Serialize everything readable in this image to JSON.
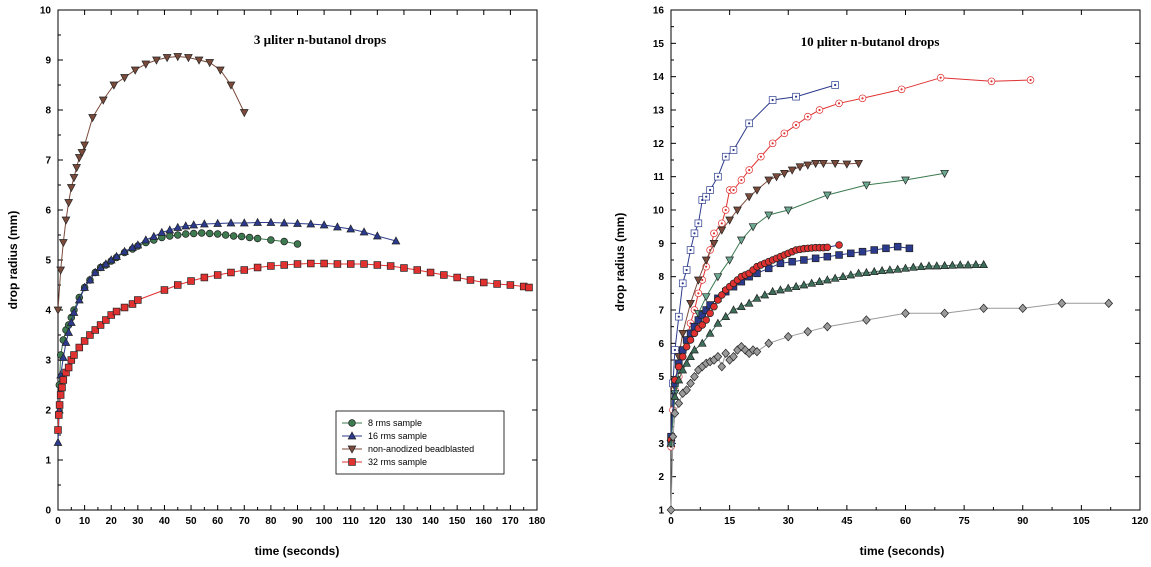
{
  "chart_data": [
    {
      "type": "line",
      "title": "3 µliter n-butanol drops",
      "xlabel": "time (seconds)",
      "ylabel": "drop radius (mm)",
      "xlim": [
        0,
        180
      ],
      "ylim": [
        0,
        10
      ],
      "x_ticks": [
        0,
        10,
        20,
        30,
        40,
        50,
        60,
        70,
        80,
        90,
        100,
        110,
        120,
        130,
        140,
        150,
        160,
        170,
        180
      ],
      "y_ticks": [
        0,
        1,
        2,
        3,
        4,
        5,
        6,
        7,
        8,
        9,
        10
      ],
      "legend_position": "lower-right",
      "series": [
        {
          "name": "8 rms sample",
          "marker": "circle",
          "fill": "#3d7a50",
          "line": "#3d7a50",
          "x": [
            0.5,
            1,
            2,
            3,
            4,
            5,
            6,
            8,
            10,
            12,
            14,
            16,
            18,
            20,
            22,
            25,
            28,
            30,
            33,
            36,
            39,
            42,
            45,
            48,
            51,
            54,
            57,
            60,
            63,
            66,
            69,
            72,
            75,
            80,
            85,
            90
          ],
          "y": [
            2.5,
            3.1,
            3.4,
            3.6,
            3.7,
            3.85,
            4.0,
            4.25,
            4.45,
            4.6,
            4.75,
            4.85,
            4.9,
            4.98,
            5.05,
            5.15,
            5.22,
            5.28,
            5.35,
            5.4,
            5.45,
            5.48,
            5.5,
            5.52,
            5.53,
            5.54,
            5.53,
            5.52,
            5.5,
            5.48,
            5.47,
            5.45,
            5.43,
            5.4,
            5.37,
            5.32
          ]
        },
        {
          "name": "16 rms sample",
          "marker": "triangle-up",
          "fill": "#2b3a8c",
          "line": "#2b3a8c",
          "x": [
            0,
            0.5,
            1,
            2,
            3,
            4,
            5,
            6,
            8,
            10,
            12,
            14,
            16,
            18,
            20,
            22,
            25,
            28,
            30,
            33,
            36,
            39,
            42,
            45,
            48,
            51,
            55,
            60,
            65,
            70,
            75,
            80,
            85,
            90,
            95,
            100,
            105,
            110,
            115,
            120,
            127
          ],
          "y": [
            1.35,
            2.0,
            2.7,
            3.05,
            3.35,
            3.55,
            3.75,
            3.95,
            4.2,
            4.45,
            4.6,
            4.75,
            4.85,
            4.92,
            5.0,
            5.07,
            5.17,
            5.25,
            5.3,
            5.4,
            5.47,
            5.55,
            5.6,
            5.65,
            5.68,
            5.7,
            5.72,
            5.73,
            5.74,
            5.74,
            5.75,
            5.75,
            5.74,
            5.73,
            5.72,
            5.7,
            5.66,
            5.62,
            5.56,
            5.48,
            5.38
          ]
        },
        {
          "name": "non-anodized beadblasted",
          "marker": "triangle-down",
          "fill": "#7a4a3a",
          "line": "#7a4a3a",
          "x": [
            0,
            1,
            2,
            3,
            4,
            5,
            6,
            7,
            8,
            9,
            10,
            13,
            17,
            21,
            25,
            29,
            33,
            37,
            41,
            45,
            49,
            53,
            57,
            61,
            65,
            70
          ],
          "y": [
            4.0,
            4.8,
            5.35,
            5.8,
            6.15,
            6.45,
            6.65,
            6.85,
            7.05,
            7.15,
            7.3,
            7.85,
            8.2,
            8.5,
            8.65,
            8.8,
            8.92,
            9.0,
            9.05,
            9.07,
            9.05,
            9.0,
            8.95,
            8.8,
            8.5,
            7.95
          ]
        },
        {
          "name": "32 rms sample",
          "marker": "square",
          "fill": "#e03030",
          "line": "#e03030",
          "x": [
            0,
            0.3,
            0.6,
            1,
            1.5,
            2,
            3,
            4,
            5,
            6,
            8,
            10,
            12,
            14,
            16,
            18,
            20,
            22,
            25,
            28,
            30,
            40,
            45,
            50,
            55,
            60,
            65,
            70,
            75,
            80,
            85,
            90,
            95,
            100,
            105,
            110,
            115,
            120,
            125,
            130,
            135,
            140,
            145,
            150,
            155,
            160,
            165,
            170,
            175,
            177
          ],
          "y": [
            1.6,
            1.9,
            2.1,
            2.3,
            2.45,
            2.6,
            2.75,
            2.85,
            3.0,
            3.1,
            3.25,
            3.38,
            3.5,
            3.6,
            3.7,
            3.8,
            3.9,
            3.97,
            4.05,
            4.12,
            4.2,
            4.4,
            4.5,
            4.58,
            4.65,
            4.7,
            4.75,
            4.8,
            4.85,
            4.88,
            4.9,
            4.92,
            4.93,
            4.93,
            4.92,
            4.92,
            4.92,
            4.9,
            4.88,
            4.84,
            4.8,
            4.75,
            4.7,
            4.65,
            4.6,
            4.55,
            4.52,
            4.5,
            4.47,
            4.45
          ]
        }
      ]
    },
    {
      "type": "line",
      "title": "10 µliter n-butanol drops",
      "xlabel": "time (seconds)",
      "ylabel": "drop radius (mm)",
      "xlim": [
        0,
        120
      ],
      "ylim": [
        1,
        16
      ],
      "x_ticks": [
        0,
        15,
        30,
        45,
        60,
        75,
        90,
        105,
        120
      ],
      "y_ticks": [
        1,
        2,
        3,
        4,
        5,
        6,
        7,
        8,
        9,
        10,
        11,
        12,
        13,
        14,
        15,
        16
      ],
      "series": [
        {
          "marker": "square-open",
          "fill": "#ffffff",
          "line": "#2b3a8c",
          "x": [
            0,
            0.5,
            1,
            2,
            3,
            4,
            5,
            6,
            7,
            8,
            9,
            10,
            12,
            14,
            16,
            20,
            26,
            32,
            42
          ],
          "y": [
            3.0,
            4.8,
            5.8,
            6.8,
            7.8,
            8.2,
            8.8,
            9.3,
            9.6,
            10.3,
            10.4,
            10.6,
            11.0,
            11.6,
            11.8,
            12.6,
            13.3,
            13.4,
            13.75
          ]
        },
        {
          "marker": "circle-open",
          "fill": "#ffffff",
          "line": "#e03030",
          "x": [
            0,
            0.5,
            1,
            2,
            3,
            4,
            5,
            6,
            7,
            8,
            9,
            10,
            11,
            13,
            14,
            15,
            16,
            18,
            20,
            23,
            26,
            29,
            32,
            35,
            38,
            43,
            49,
            59,
            69,
            82,
            92
          ],
          "y": [
            2.9,
            4.0,
            4.6,
            5.0,
            5.6,
            6.1,
            6.6,
            7.0,
            7.5,
            7.9,
            8.3,
            8.8,
            9.3,
            9.6,
            10.0,
            10.6,
            10.6,
            10.9,
            11.2,
            11.6,
            12.0,
            12.3,
            12.55,
            12.8,
            13.0,
            13.2,
            13.35,
            13.62,
            13.97,
            13.86,
            13.9
          ]
        },
        {
          "marker": "triangle-down",
          "fill": "#7a4a3a",
          "line": "#7a4a3a",
          "x": [
            0,
            1,
            2,
            3,
            5,
            7,
            9,
            11,
            13,
            15,
            17,
            20,
            22,
            25,
            27,
            29,
            31,
            33,
            35,
            37,
            39,
            42,
            45,
            48
          ],
          "y": [
            3.0,
            4.7,
            5.6,
            6.3,
            7.2,
            7.9,
            8.5,
            9.0,
            9.4,
            9.7,
            10.0,
            10.4,
            10.6,
            10.9,
            11.0,
            11.1,
            11.2,
            11.3,
            11.35,
            11.4,
            11.4,
            11.4,
            11.38,
            11.4
          ]
        },
        {
          "marker": "triangle-down",
          "fill": "#6aa890",
          "line": "#3d7a50",
          "x": [
            0,
            1,
            2,
            3,
            5,
            7,
            9,
            12,
            15,
            18,
            21,
            25,
            30,
            40,
            50,
            60,
            70
          ],
          "y": [
            3.0,
            4.5,
            5.2,
            5.7,
            6.3,
            6.9,
            7.4,
            8.0,
            8.5,
            9.1,
            9.5,
            9.85,
            10.0,
            10.45,
            10.75,
            10.9,
            11.1
          ]
        },
        {
          "marker": "square",
          "fill": "#2b3a8c",
          "line": "#2b3a8c",
          "x": [
            0,
            1,
            2,
            3,
            4,
            5,
            6,
            7,
            8,
            9,
            10,
            12,
            14,
            16,
            18,
            20,
            22,
            25,
            28,
            31,
            34,
            37,
            40,
            43,
            46,
            49,
            52,
            55,
            58,
            61
          ],
          "y": [
            3.2,
            4.8,
            5.4,
            5.8,
            6.1,
            6.3,
            6.5,
            6.7,
            6.85,
            7.0,
            7.15,
            7.35,
            7.55,
            7.7,
            7.85,
            8.0,
            8.1,
            8.25,
            8.4,
            8.45,
            8.5,
            8.55,
            8.6,
            8.65,
            8.7,
            8.75,
            8.8,
            8.85,
            8.9,
            8.85
          ]
        },
        {
          "marker": "circle",
          "fill": "#e03030",
          "line": "#2b3a8c",
          "x": [
            0,
            1,
            2,
            3,
            4,
            5,
            6,
            7,
            8,
            9,
            10,
            11,
            12,
            13,
            14,
            15,
            16,
            17,
            18,
            19,
            20,
            21,
            22,
            23,
            24,
            25,
            26,
            27,
            28,
            29,
            30,
            31,
            32,
            33,
            34,
            35,
            36,
            37,
            38,
            39,
            40,
            43
          ],
          "y": [
            3.1,
            4.9,
            5.3,
            5.6,
            5.9,
            6.1,
            6.3,
            6.45,
            6.55,
            6.7,
            6.9,
            7.1,
            7.3,
            7.45,
            7.6,
            7.7,
            7.8,
            7.9,
            8.0,
            8.05,
            8.1,
            8.2,
            8.3,
            8.35,
            8.4,
            8.45,
            8.5,
            8.55,
            8.6,
            8.65,
            8.7,
            8.75,
            8.8,
            8.82,
            8.84,
            8.85,
            8.86,
            8.87,
            8.87,
            8.87,
            8.88,
            8.95
          ]
        },
        {
          "marker": "triangle-up",
          "fill": "#3d6e5a",
          "line": "#3d6e5a",
          "x": [
            0,
            1,
            2,
            3,
            4,
            5,
            6,
            8,
            10,
            12,
            14,
            16,
            18,
            20,
            22,
            24,
            26,
            28,
            30,
            32,
            34,
            36,
            38,
            40,
            42,
            44,
            46,
            48,
            50,
            52,
            54,
            56,
            58,
            60,
            62,
            64,
            66,
            68,
            70,
            72,
            74,
            76,
            78,
            80
          ],
          "y": [
            3.0,
            4.4,
            4.9,
            5.2,
            5.4,
            5.6,
            5.8,
            6.0,
            6.3,
            6.6,
            6.8,
            7.0,
            7.1,
            7.2,
            7.35,
            7.45,
            7.55,
            7.6,
            7.65,
            7.7,
            7.75,
            7.8,
            7.85,
            7.9,
            7.95,
            8.0,
            8.05,
            8.1,
            8.12,
            8.15,
            8.18,
            8.2,
            8.22,
            8.25,
            8.28,
            8.3,
            8.32,
            8.32,
            8.33,
            8.34,
            8.35,
            8.35,
            8.36,
            8.36
          ]
        },
        {
          "marker": "diamond",
          "fill": "#9a9a9a",
          "line": "#9a9a9a",
          "x": [
            0,
            0.5,
            1,
            2,
            3,
            4,
            5,
            6,
            7,
            8,
            9,
            10,
            11,
            12,
            13,
            14,
            15,
            16,
            17,
            18,
            19,
            20,
            21,
            22,
            25,
            30,
            35,
            40,
            50,
            60,
            70,
            80,
            90,
            100,
            112
          ],
          "y": [
            1.0,
            3.2,
            3.9,
            4.2,
            4.5,
            4.6,
            4.8,
            5.0,
            5.2,
            5.3,
            5.4,
            5.45,
            5.5,
            5.6,
            5.3,
            5.7,
            5.5,
            5.6,
            5.8,
            5.9,
            5.8,
            5.7,
            5.8,
            5.75,
            6.0,
            6.2,
            6.35,
            6.5,
            6.7,
            6.9,
            6.9,
            7.05,
            7.05,
            7.2,
            7.2
          ]
        }
      ]
    }
  ]
}
